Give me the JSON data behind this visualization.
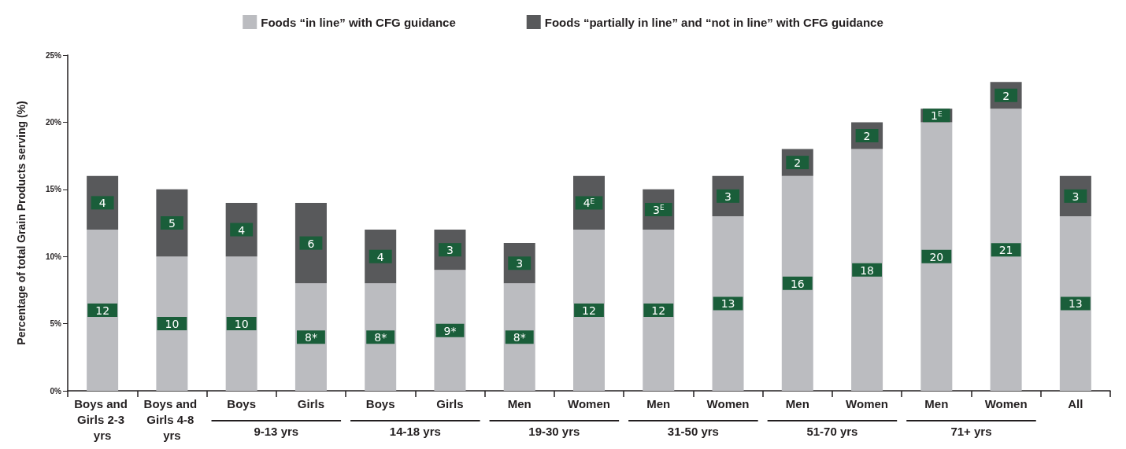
{
  "chart_data": {
    "type": "bar",
    "stacked": true,
    "ylabel": "Percentage of total Grain Products serving (%)",
    "categories": [
      "Boys and Girls 2-3 yrs",
      "Boys and Girls 4-8 yrs",
      "Boys",
      "Girls",
      "Boys",
      "Girls",
      "Men",
      "Women",
      "Men",
      "Women",
      "Men",
      "Women",
      "Men",
      "Women",
      "All"
    ],
    "annotations": [
      "9-13 yrs",
      "14-18 yrs",
      "19-30 yrs",
      "31-50 yrs",
      "51-70 yrs",
      "71+ yrs"
    ],
    "series": [
      {
        "name": "Foods “in line” with CFG guidance",
        "color": "#bbbcc0",
        "values": [
          12,
          10,
          10,
          8,
          8,
          9,
          8,
          12,
          12,
          13,
          16,
          18,
          20,
          21,
          13
        ],
        "value_labels": [
          "12",
          "10",
          "10",
          "8*",
          "8*",
          "9*",
          "8*",
          "12",
          "12",
          "13",
          "16",
          "18",
          "20",
          "21",
          "13"
        ]
      },
      {
        "name": "Foods “partially in line” and “not in line” with CFG guidance",
        "color": "#58595b",
        "values": [
          4,
          5,
          4,
          6,
          4,
          3,
          3,
          4,
          3,
          3,
          2,
          2,
          1,
          2,
          3
        ],
        "value_labels": [
          "4",
          "5",
          "4",
          "6",
          "4",
          "3",
          "3",
          "4$^{E}$",
          "3$^{E}$",
          "3",
          "2",
          "2",
          "1$^{E}$",
          "2",
          "3"
        ]
      }
    ],
    "ylim": [
      0,
      25
    ],
    "yticks": [
      {
        "value": 0,
        "label": "0%"
      },
      {
        "value": 5,
        "label": "5%"
      },
      {
        "value": 10,
        "label": "10%"
      },
      {
        "value": 15,
        "label": "15%"
      },
      {
        "value": 20,
        "label": "20%"
      },
      {
        "value": 25,
        "label": "25%"
      }
    ],
    "grid": false,
    "legend": "top"
  }
}
